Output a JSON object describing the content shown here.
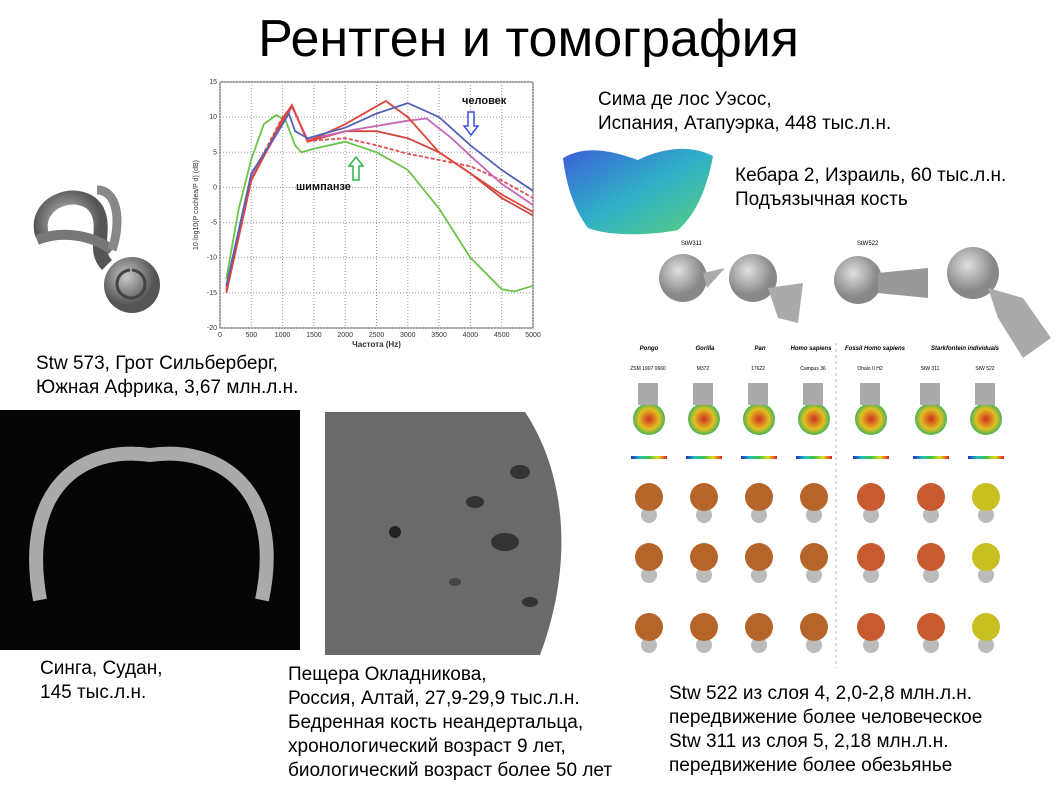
{
  "title": "Рентген и томография",
  "captions": {
    "stw573": [
      "Stw 573, Грот Сильберберг,",
      "Южная Африка, 3,67 млн.л.н."
    ],
    "sima": [
      "Сима де лос Уэсос,",
      "Испания, Атапуэрка, 448 тыс.л.н."
    ],
    "kebara": [
      "Кебара 2, Израиль, 60 тыс.л.н.",
      "Подъязычная кость"
    ],
    "singa": [
      "Синга, Судан,",
      "145 тыс.л.н."
    ],
    "okladnikov": [
      "Пещера Окладникова,",
      "Россия, Алтай, 27,9-29,9 тыс.л.н.",
      "Бедренная кость неандертальца,",
      "хронологический возраст 9 лет,",
      "биологический возраст более 50 лет"
    ],
    "stw522": [
      "Stw 522 из слоя 4, 2,0-2,8 млн.л.н.",
      "передвижение более человеческое",
      "Stw 311 из слоя 5, 2,18 млн.л.н.",
      "передвижение более обезьянье"
    ]
  },
  "femur_figure": {
    "top_labels": [
      "StW311",
      "StW522"
    ],
    "groups": [
      "Pongo",
      "Gorilla",
      "Pan",
      "Homo sapiens",
      "Fossil Homo sapiens",
      "Starkfontein individuals"
    ],
    "specimens": [
      "ZSM 1907 0660",
      "M372",
      "17622",
      "Campus 36",
      "Ohalo II H2",
      "StW 311",
      "StW 522"
    ]
  },
  "chart_data": {
    "type": "line",
    "xlabel": "Частота (Hz)",
    "ylabel": "10·log10(P cochlea/P d) (dB)",
    "xlim": [
      0,
      5000
    ],
    "ylim": [
      -20,
      15
    ],
    "xticks": [
      0,
      500,
      1000,
      1500,
      2000,
      2500,
      3000,
      3500,
      4000,
      4500,
      5000
    ],
    "yticks": [
      -20,
      -15,
      -10,
      -5,
      0,
      5,
      10,
      15
    ],
    "grid": true,
    "annotations": [
      {
        "text": "человек",
        "color": "#3a4fd8"
      },
      {
        "text": "шимпанзе",
        "color": "#2fb34a"
      }
    ],
    "series": [
      {
        "color": "#6cc24a",
        "dashed": false,
        "points": [
          [
            100,
            -13
          ],
          [
            300,
            -3
          ],
          [
            500,
            4
          ],
          [
            700,
            9
          ],
          [
            900,
            10.3
          ],
          [
            1050,
            9.5
          ],
          [
            1200,
            6
          ],
          [
            1300,
            5
          ],
          [
            1500,
            5.5
          ],
          [
            2000,
            6.5
          ],
          [
            2500,
            5
          ],
          [
            3000,
            2.5
          ],
          [
            3500,
            -3
          ],
          [
            4000,
            -10
          ],
          [
            4500,
            -14.5
          ],
          [
            4700,
            -14.8
          ],
          [
            5000,
            -14
          ]
        ]
      },
      {
        "color": "#e05050",
        "dashed": true,
        "points": [
          [
            100,
            -14.5
          ],
          [
            500,
            1.5
          ],
          [
            1000,
            10
          ],
          [
            1150,
            11.5
          ],
          [
            1400,
            6.6
          ],
          [
            2000,
            7
          ],
          [
            2500,
            6
          ],
          [
            3000,
            4.8
          ],
          [
            4000,
            3
          ],
          [
            4500,
            1
          ],
          [
            5000,
            -1.5
          ]
        ]
      },
      {
        "color": "#d0453c",
        "dashed": false,
        "points": [
          [
            100,
            -15
          ],
          [
            500,
            1
          ],
          [
            1000,
            9.8
          ],
          [
            1150,
            11.7
          ],
          [
            1400,
            6.5
          ],
          [
            2000,
            8
          ],
          [
            2500,
            8
          ],
          [
            3000,
            7
          ],
          [
            3500,
            5
          ],
          [
            4000,
            2
          ],
          [
            4500,
            -1.5
          ],
          [
            5000,
            -4
          ]
        ]
      },
      {
        "color": "#c868b8",
        "dashed": false,
        "points": [
          [
            100,
            -14
          ],
          [
            500,
            1.5
          ],
          [
            1000,
            9
          ],
          [
            1150,
            11.5
          ],
          [
            1400,
            6.8
          ],
          [
            2000,
            8
          ],
          [
            3000,
            9.5
          ],
          [
            3300,
            9.8
          ],
          [
            3700,
            7
          ],
          [
            4000,
            4.5
          ],
          [
            4500,
            0.5
          ],
          [
            5000,
            -2.5
          ]
        ]
      },
      {
        "color": "#e0473a",
        "dashed": false,
        "points": [
          [
            100,
            -15
          ],
          [
            500,
            1
          ],
          [
            1000,
            9.5
          ],
          [
            1150,
            11.7
          ],
          [
            1400,
            6.5
          ],
          [
            2000,
            9
          ],
          [
            2650,
            12.3
          ],
          [
            3000,
            10
          ],
          [
            3500,
            5
          ],
          [
            4000,
            2
          ],
          [
            4500,
            -1
          ],
          [
            5000,
            -3.5
          ]
        ]
      },
      {
        "color": "#5560b8",
        "dashed": false,
        "points": [
          [
            100,
            -14
          ],
          [
            500,
            2
          ],
          [
            1000,
            9
          ],
          [
            1100,
            10.5
          ],
          [
            1200,
            8
          ],
          [
            1400,
            7
          ],
          [
            2000,
            8.5
          ],
          [
            2500,
            10.5
          ],
          [
            3000,
            12
          ],
          [
            3500,
            10
          ],
          [
            4000,
            6
          ],
          [
            4500,
            2.5
          ],
          [
            5000,
            -0.5
          ]
        ]
      }
    ]
  }
}
